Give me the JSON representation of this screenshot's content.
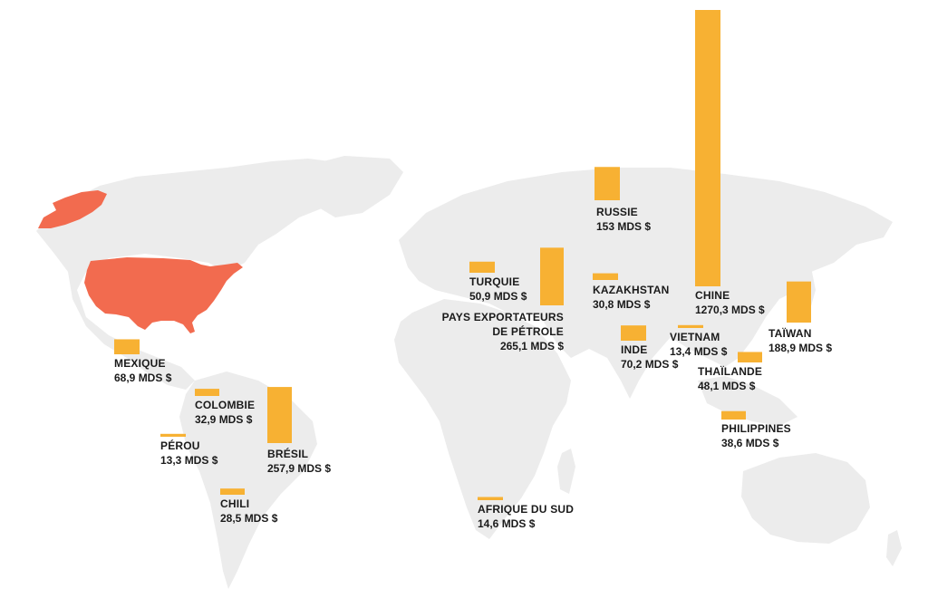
{
  "colors": {
    "usa": "#f26b4f",
    "bar": "#f7b133",
    "land": "#ececec"
  },
  "chart_data": {
    "type": "bar",
    "unit": "MDS $",
    "items": [
      {
        "name": "CHINE",
        "value": 1270.3,
        "label": "1270,3 MDS $"
      },
      {
        "name": "PAYS EXPORTATEURS",
        "name2": "DE PÉTROLE",
        "value": 265.1,
        "label": "265,1 MDS $"
      },
      {
        "name": "BRÉSIL",
        "value": 257.9,
        "label": "257,9 MDS $"
      },
      {
        "name": "TAÏWAN",
        "value": 188.9,
        "label": "188,9 MDS $"
      },
      {
        "name": "RUSSIE",
        "value": 153,
        "label": "153 MDS $"
      },
      {
        "name": "INDE",
        "value": 70.2,
        "label": "70,2 MDS $"
      },
      {
        "name": "MEXIQUE",
        "value": 68.9,
        "label": "68,9 MDS $"
      },
      {
        "name": "TURQUIE",
        "value": 50.9,
        "label": "50,9 MDS $"
      },
      {
        "name": "THAÏLANDE",
        "value": 48.1,
        "label": "48,1 MDS $"
      },
      {
        "name": "PHILIPPINES",
        "value": 38.6,
        "label": "38,6 MDS $"
      },
      {
        "name": "COLOMBIE",
        "value": 32.9,
        "label": "32,9 MDS $"
      },
      {
        "name": "KAZAKHSTAN",
        "value": 30.8,
        "label": "30,8 MDS $"
      },
      {
        "name": "CHILI",
        "value": 28.5,
        "label": "28,5 MDS $"
      },
      {
        "name": "AFRIQUE DU SUD",
        "value": 14.6,
        "label": "14,6 MDS $"
      },
      {
        "name": "VIETNAM",
        "value": 13.4,
        "label": "13,4 MDS $"
      },
      {
        "name": "PÉROU",
        "value": 13.3,
        "label": "13,3 MDS $"
      }
    ]
  }
}
